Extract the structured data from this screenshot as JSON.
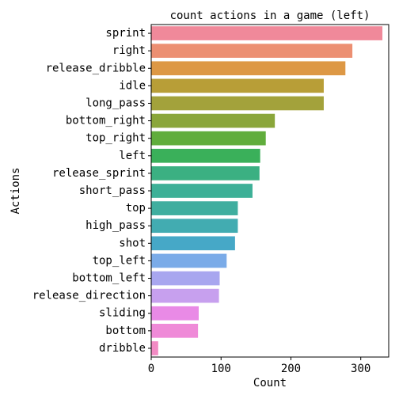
{
  "chart_data": {
    "type": "bar",
    "orientation": "horizontal",
    "title": "count actions in a game (left)",
    "xlabel": "Count",
    "ylabel": "Actions",
    "xlim": [
      0,
      340
    ],
    "xticks": [
      0,
      100,
      200,
      300
    ],
    "grid": false,
    "categories": [
      "sprint",
      "right",
      "release_dribble",
      "idle",
      "long_pass",
      "bottom_right",
      "top_right",
      "left",
      "release_sprint",
      "short_pass",
      "top",
      "high_pass",
      "shot",
      "top_left",
      "bottom_left",
      "release_direction",
      "sliding",
      "bottom",
      "dribble"
    ],
    "values": [
      331,
      288,
      278,
      247,
      247,
      177,
      164,
      156,
      155,
      145,
      124,
      124,
      120,
      108,
      98,
      97,
      68,
      67,
      10
    ],
    "colors": [
      "#f0899a",
      "#ec8f72",
      "#dd9845",
      "#b89e37",
      "#a3a23b",
      "#8aa63a",
      "#60ad3c",
      "#3ab05a",
      "#3bb082",
      "#3db097",
      "#3fae9f",
      "#42acb1",
      "#46a8c7",
      "#7aabe8",
      "#a8a6ef",
      "#c7a0ee",
      "#e98ae6",
      "#ef8ad8",
      "#f28bc4"
    ]
  }
}
